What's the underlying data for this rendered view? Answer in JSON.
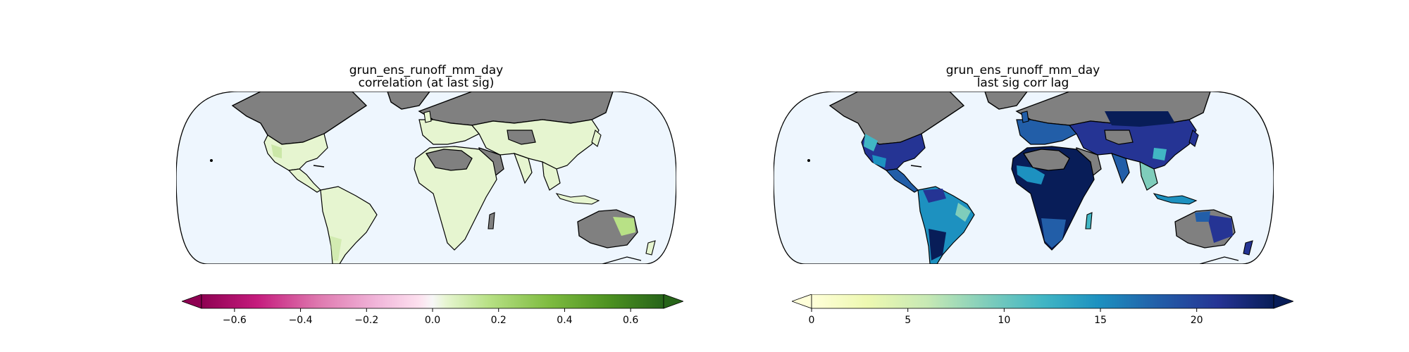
{
  "panels": [
    {
      "title_line1": "grun_ens_runoff_mm_day",
      "title_line2": "correlation (at last sig)",
      "colorbar": {
        "colormap": "PiYG",
        "ticks": [
          "−0.6",
          "−0.4",
          "−0.2",
          "0.0",
          "0.2",
          "0.4",
          "0.6"
        ],
        "range": [
          -0.7,
          0.7
        ],
        "extend": "both"
      },
      "land_dominant_color": "#e6f5d0",
      "masked_color": "#808080"
    },
    {
      "title_line1": "grun_ens_runoff_mm_day",
      "title_line2": "last sig corr lag",
      "colorbar": {
        "colormap": "YlGnBu",
        "ticks": [
          "0",
          "5",
          "10",
          "15",
          "20"
        ],
        "range": [
          0,
          24
        ],
        "extend": "both"
      },
      "land_dominant_color": "#253494",
      "masked_color": "#808080"
    }
  ],
  "colors": {
    "ocean": "#eef6fe",
    "masked_land": "#808080",
    "coastline": "#000000"
  }
}
